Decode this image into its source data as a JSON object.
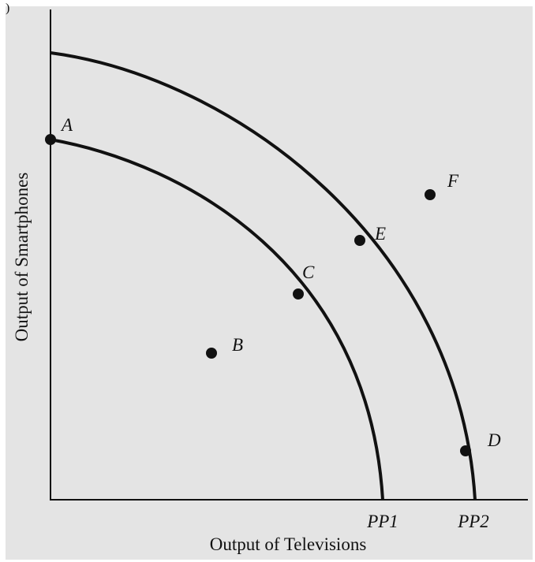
{
  "diagram": {
    "corner_mark": ")",
    "x_axis_title": "Output of Televisions",
    "y_axis_title": "Output of Smartphones",
    "curves": [
      {
        "name": "PP1",
        "label": "PP1"
      },
      {
        "name": "PP2",
        "label": "PP2"
      }
    ],
    "points": [
      {
        "label": "A"
      },
      {
        "label": "B"
      },
      {
        "label": "C"
      },
      {
        "label": "D"
      },
      {
        "label": "E"
      },
      {
        "label": "F"
      }
    ],
    "colors": {
      "background": "#e4e4e4",
      "ink": "#111111"
    }
  }
}
